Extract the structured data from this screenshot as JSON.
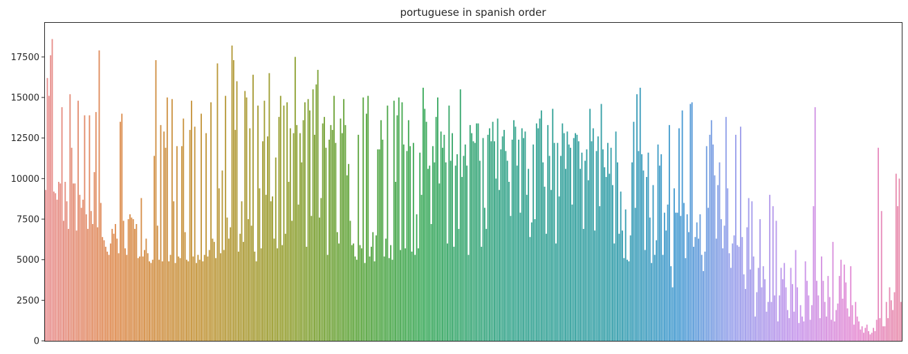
{
  "chart_data": {
    "type": "bar",
    "title": "portuguese in spanish order",
    "xlabel": "",
    "ylabel": "",
    "ylim": [
      0,
      19600
    ],
    "yticks": [
      0,
      2500,
      5000,
      7500,
      10000,
      12500,
      15000,
      17500
    ],
    "ytick_labels": [
      "0",
      "2500",
      "5000",
      "7500",
      "10000",
      "12500",
      "15000",
      "17500"
    ],
    "x_ticks_visible": false,
    "grid": false,
    "legend": "none",
    "palette_note": "hue cycles across categories from red-pink through orange, olive, green, teal, blue, purple to pink",
    "num_bars_estimate": 560,
    "values": [
      9300,
      16200,
      15100,
      17600,
      18600,
      9200,
      9100,
      8700,
      9800,
      9700,
      14400,
      7400,
      9800,
      8600,
      6900,
      15200,
      11900,
      9700,
      9700,
      6800,
      14800,
      9000,
      8200,
      8700,
      13900,
      7800,
      6900,
      13900,
      8000,
      7200,
      10400,
      14100,
      7000,
      17900,
      8500,
      6400,
      6200,
      5800,
      5500,
      5300,
      6000,
      6900,
      6600,
      7200,
      6300,
      5400,
      13500,
      14000,
      7400,
      5700,
      5300,
      7500,
      7800,
      7600,
      7500,
      6900,
      7200,
      5100,
      5200,
      8800,
      5200,
      5600,
      6300,
      5400,
      4900,
      4800,
      5000,
      11400,
      17300,
      7100,
      5000,
      13300,
      4900,
      12900,
      11900,
      15000,
      4900,
      5300,
      14900,
      8600,
      4800,
      12000,
      5200,
      5100,
      12000,
      13700,
      6700,
      5000,
      4900,
      13000,
      14800,
      5200,
      13200,
      4800,
      5300,
      5000,
      14000,
      4900,
      5300,
      12800,
      5200,
      5600,
      14700,
      6300,
      6100,
      5100,
      17100,
      9400,
      5400,
      10500,
      5600,
      15100,
      7600,
      6300,
      7000,
      18200,
      17300,
      13000,
      16000,
      5500,
      6600,
      8600,
      6100,
      15400,
      15000,
      7500,
      13100,
      7100,
      16400,
      5500,
      4900,
      14500,
      9400,
      5700,
      12300,
      14800,
      9000,
      12600,
      16500,
      8600,
      8900,
      6300,
      11300,
      5700,
      13800,
      15100,
      5900,
      14500,
      6600,
      14700,
      9800,
      13100,
      7400,
      12800,
      17500,
      13300,
      8400,
      12800,
      11000,
      13600,
      14700,
      5800,
      14900,
      14200,
      7700,
      15500,
      12700,
      15800,
      16700,
      7600,
      8800,
      13400,
      13800,
      11900,
      5300,
      12400,
      13300,
      13000,
      15100,
      12200,
      6700,
      6000,
      13700,
      12800,
      14900,
      13300,
      10200,
      10900,
      7400,
      5900,
      6000,
      5200,
      5000,
      12700,
      5900,
      5700,
      15000,
      4800,
      14000,
      15100,
      5200,
      5800,
      6700,
      4900,
      6500,
      11800,
      11800,
      13600,
      12400,
      5200,
      6300,
      14500,
      5100,
      5900,
      5000,
      14800,
      9800,
      13900,
      15000,
      5600,
      14700,
      12100,
      5700,
      11700,
      13600,
      12000,
      5500,
      12200,
      5300,
      7800,
      5700,
      11600,
      9000,
      15600,
      14300,
      13500,
      10600,
      10800,
      7200,
      12000,
      11000,
      13800,
      15000,
      9700,
      12900,
      11900,
      12700,
      11000,
      6000,
      14500,
      11100,
      12800,
      5800,
      10800,
      11500,
      6900,
      15500,
      10100,
      11400,
      12100,
      10800,
      5300,
      13300,
      12800,
      12300,
      12200,
      13400,
      13400,
      11100,
      5800,
      12500,
      8200,
      6900,
      12700,
      13100,
      12300,
      13500,
      12300,
      10000,
      13700,
      9300,
      11800,
      12600,
      13000,
      11700,
      11100,
      9800,
      7700,
      12400,
      13600,
      13200,
      10800,
      12400,
      7900,
      13100,
      12500,
      12900,
      9000,
      10600,
      6400,
      7300,
      12100,
      7500,
      13400,
      13100,
      13700,
      14200,
      11000,
      9500,
      6600,
      13300,
      11400,
      9300,
      14300,
      12200,
      6000,
      12200,
      8900,
      11400,
      13400,
      12800,
      10600,
      12900,
      12100,
      11900,
      8400,
      12500,
      12800,
      12700,
      12300,
      10600,
      11600,
      6900,
      11100,
      11800,
      9900,
      14300,
      12300,
      13100,
      6800,
      11700,
      12600,
      8300,
      14600,
      11800,
      10700,
      10100,
      12200,
      10300,
      11900,
      9600,
      6000,
      12900,
      11000,
      6600,
      9200,
      6800,
      5100,
      8100,
      5000,
      4900,
      6500,
      11000,
      13500,
      8200,
      15200,
      11700,
      15600,
      11500,
      10500,
      5600,
      10100,
      11600,
      7600,
      4800,
      9600,
      5300,
      6200,
      12100,
      10800,
      11500,
      5300,
      7900,
      6800,
      8400,
      13300,
      4600,
      3300,
      9400,
      7900,
      7900,
      13100,
      7700,
      14200,
      8500,
      5100,
      7800,
      6700,
      14600,
      14700,
      5800,
      6400,
      7300,
      6300,
      7800,
      5300,
      4300,
      5500,
      12000,
      8200,
      12700,
      13600,
      12100,
      10200,
      6300,
      9600,
      11000,
      7500,
      5700,
      7100,
      13800,
      9400,
      5400,
      4500,
      6000,
      6500,
      12700,
      5900,
      5800,
      13200,
      6400,
      4100,
      3200,
      7000,
      8800,
      4400,
      8600,
      5200,
      1500,
      3000,
      4500,
      7500,
      3300,
      4600,
      3800,
      1800,
      2400,
      9000,
      2400,
      8300,
      2800,
      7400,
      1200,
      2800,
      4500,
      3800,
      4800,
      3300,
      1900,
      1400,
      4500,
      3500,
      1800,
      5600,
      3300,
      1100,
      2200,
      1500,
      1200,
      4900,
      3700,
      2800,
      1300,
      2200,
      8300,
      14400,
      3700,
      2800,
      1400,
      5200,
      3700,
      2400,
      1500,
      4000,
      2700,
      1300,
      6100,
      1200,
      1900,
      2300,
      4000,
      5000,
      2600,
      4700,
      3600,
      2000,
      1500,
      4600,
      2200,
      1000,
      2400,
      1500,
      1200,
      700,
      900,
      500,
      800,
      1000,
      600,
      400,
      500,
      800,
      600,
      1300,
      11900,
      1400,
      8000,
      900,
      900,
      2400,
      1400,
      3300,
      2500,
      1900,
      3000,
      10300,
      8300,
      10000,
      2400
    ]
  }
}
